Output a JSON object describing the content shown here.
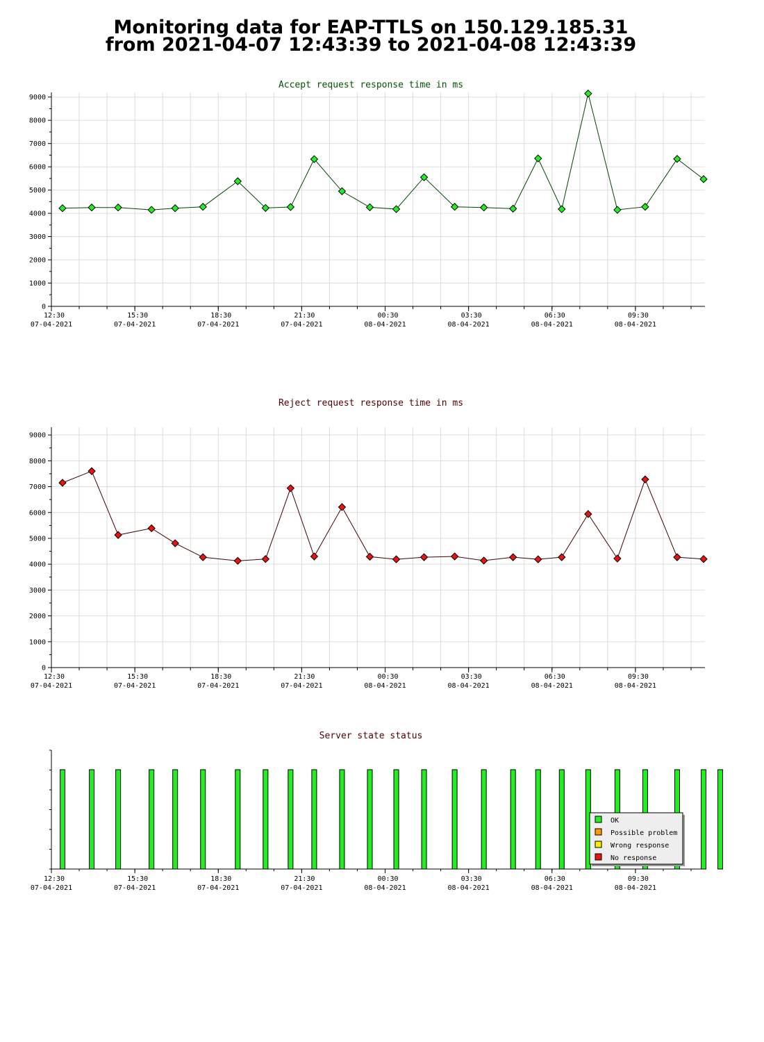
{
  "header": {
    "title_line1": "Monitoring data for EAP-TTLS on 150.129.185.31",
    "title_line2": "from 2021-04-07 12:43:39 to 2021-04-08 12:43:39"
  },
  "time_axis": {
    "ticks": [
      {
        "t": 0,
        "time": "12:30",
        "date": "07-04-2021"
      },
      {
        "t": 3,
        "time": "15:30",
        "date": "07-04-2021"
      },
      {
        "t": 6,
        "time": "18:30",
        "date": "07-04-2021"
      },
      {
        "t": 9,
        "time": "21:30",
        "date": "07-04-2021"
      },
      {
        "t": 12,
        "time": "00:30",
        "date": "08-04-2021"
      },
      {
        "t": 15,
        "time": "03:30",
        "date": "08-04-2021"
      },
      {
        "t": 18,
        "time": "06:30",
        "date": "08-04-2021"
      },
      {
        "t": 21,
        "time": "09:30",
        "date": "08-04-2021"
      }
    ]
  },
  "colors": {
    "accept_line": "#004400",
    "accept_marker": "#22ee22",
    "reject_line": "#440000",
    "reject_marker": "#ee1111",
    "title_accept": "#005500",
    "title_reject": "#550000",
    "grid": "#dddddd",
    "ok": "#22ee22",
    "possible_problem": "#ff9900",
    "wrong_response": "#ffee00",
    "no_response": "#ee1111"
  },
  "chart_data": [
    {
      "type": "line",
      "title": "Accept request response time in ms",
      "xlabel": "",
      "ylabel": "",
      "yticks": [
        0,
        1000,
        2000,
        3000,
        4000,
        5000,
        6000,
        7000,
        8000,
        9000
      ],
      "ylim": [
        0,
        9200
      ],
      "xlim": [
        0,
        23.5
      ],
      "grid": true,
      "x": [
        0.4,
        1.45,
        2.4,
        3.6,
        4.45,
        5.45,
        6.7,
        7.7,
        8.6,
        9.45,
        10.45,
        11.45,
        12.4,
        13.4,
        14.5,
        15.55,
        16.6,
        17.5,
        18.35,
        19.3,
        20.35,
        21.35,
        22.5,
        23.45
      ],
      "series": [
        {
          "values": [
            4220,
            4250,
            4250,
            4150,
            4220,
            4280,
            5380,
            4230,
            4270,
            6330,
            4950,
            4260,
            4180,
            5550,
            4280,
            4250,
            4200,
            6360,
            4180,
            9150,
            4150,
            4280,
            6340,
            5470
          ]
        }
      ]
    },
    {
      "type": "line",
      "title": "Reject request response time in ms",
      "xlabel": "",
      "ylabel": "",
      "yticks": [
        0,
        1000,
        2000,
        3000,
        4000,
        5000,
        6000,
        7000,
        8000,
        9000
      ],
      "ylim": [
        0,
        9300
      ],
      "xlim": [
        0,
        23.5
      ],
      "grid": true,
      "x": [
        0.4,
        1.45,
        2.4,
        3.6,
        4.45,
        5.45,
        6.7,
        7.7,
        8.6,
        9.45,
        10.45,
        11.45,
        12.4,
        13.4,
        14.5,
        15.55,
        16.6,
        17.5,
        18.35,
        19.3,
        20.35,
        21.35,
        22.5,
        23.45
      ],
      "series": [
        {
          "values": [
            7150,
            7600,
            5130,
            5390,
            4810,
            4270,
            4130,
            4200,
            6940,
            4300,
            6210,
            4290,
            4190,
            4270,
            4300,
            4140,
            4270,
            4190,
            4270,
            5940,
            4220,
            7280,
            4270,
            4200
          ]
        }
      ]
    },
    {
      "type": "bar",
      "title": "Server state status",
      "xlim": [
        0,
        23.5
      ],
      "x": [
        0.4,
        1.45,
        2.4,
        3.6,
        4.45,
        5.45,
        6.7,
        7.7,
        8.6,
        9.45,
        10.45,
        11.45,
        12.4,
        13.4,
        14.5,
        15.55,
        16.6,
        17.5,
        18.35,
        19.3,
        20.35,
        21.35,
        22.5,
        23.45,
        24.05
      ],
      "status": [
        "OK",
        "OK",
        "OK",
        "OK",
        "OK",
        "OK",
        "OK",
        "OK",
        "OK",
        "OK",
        "OK",
        "OK",
        "OK",
        "OK",
        "OK",
        "OK",
        "OK",
        "OK",
        "OK",
        "OK",
        "OK",
        "OK",
        "OK",
        "OK",
        "OK"
      ],
      "legend_position": "bottom-right",
      "legend": [
        {
          "label": "OK",
          "color_key": "ok"
        },
        {
          "label": "Possible problem",
          "color_key": "possible_problem"
        },
        {
          "label": "Wrong response",
          "color_key": "wrong_response"
        },
        {
          "label": "No response",
          "color_key": "no_response"
        }
      ]
    }
  ]
}
